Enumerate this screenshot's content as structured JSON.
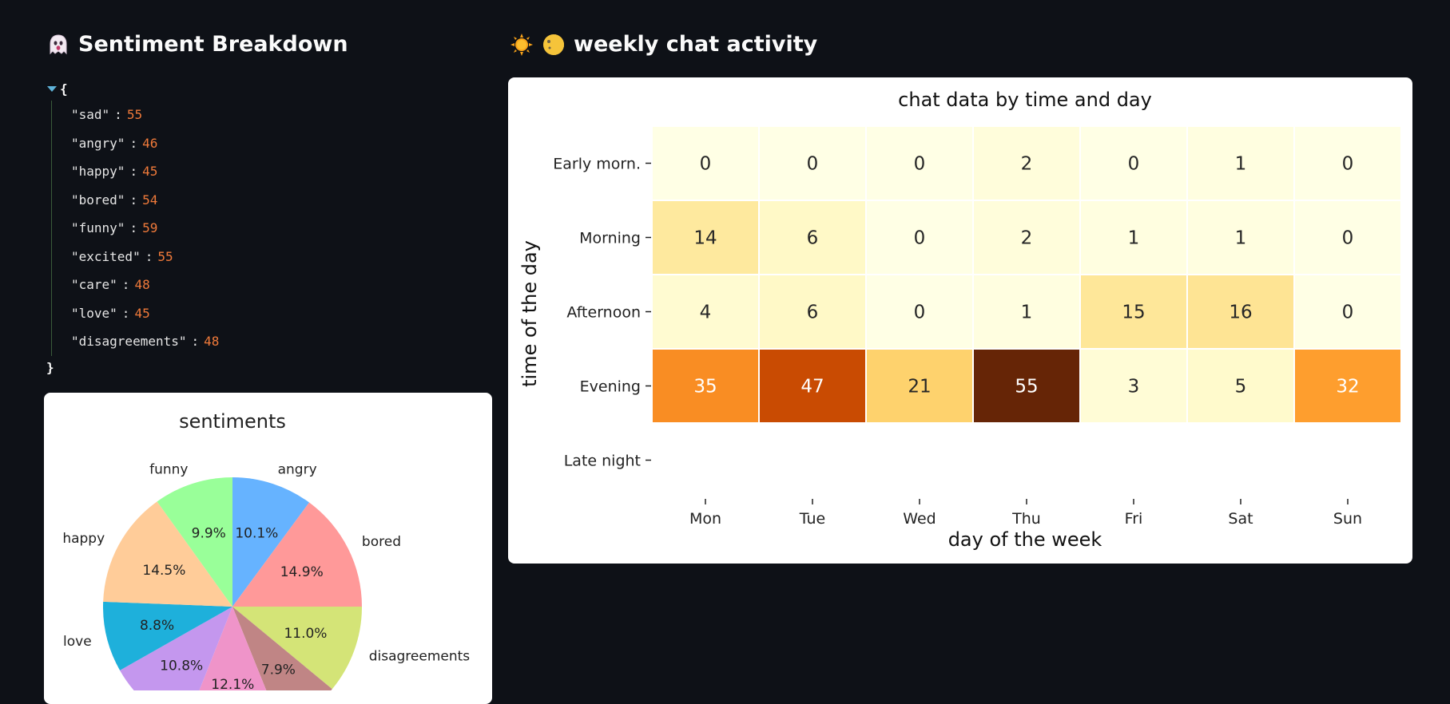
{
  "left_header": {
    "title": "Sentiment Breakdown",
    "icon": "ghost-icon"
  },
  "right_header": {
    "title": "weekly chat activity",
    "icons": [
      "sun-icon",
      "moon-icon"
    ]
  },
  "json_view": {
    "open_brace": "{",
    "close_brace": "}",
    "entries": [
      {
        "key": "\"sad\"",
        "value": "55"
      },
      {
        "key": "\"angry\"",
        "value": "46"
      },
      {
        "key": "\"happy\"",
        "value": "45"
      },
      {
        "key": "\"bored\"",
        "value": "54"
      },
      {
        "key": "\"funny\"",
        "value": "59"
      },
      {
        "key": "\"excited\"",
        "value": "55"
      },
      {
        "key": "\"care\"",
        "value": "48"
      },
      {
        "key": "\"love\"",
        "value": "45"
      },
      {
        "key": "\"disagreements\"",
        "value": "48"
      }
    ]
  },
  "chart_data": [
    {
      "type": "pie",
      "title": "sentiments",
      "slices": [
        {
          "label": "angry",
          "pct": 10.1,
          "color": "#66b3ff"
        },
        {
          "label": "bored",
          "pct": 14.9,
          "color": "#ff9999"
        },
        {
          "label": "disagreements",
          "pct": 11.0,
          "color": "#d4e477"
        },
        {
          "label": "",
          "pct": 7.9,
          "color": "#c08585"
        },
        {
          "label": "",
          "pct": 12.1,
          "color": "#ef94c9"
        },
        {
          "label": "",
          "pct": 10.8,
          "color": "#c497ee"
        },
        {
          "label": "love",
          "pct": 8.8,
          "color": "#1eb0db"
        },
        {
          "label": "happy",
          "pct": 14.5,
          "color": "#ffcc99"
        },
        {
          "label": "funny",
          "pct": 9.9,
          "color": "#99ff99"
        }
      ]
    },
    {
      "type": "heatmap",
      "title": "chat data by time and day",
      "xlabel": "day of the week",
      "ylabel": "time of the day",
      "x": [
        "Mon",
        "Tue",
        "Wed",
        "Thu",
        "Fri",
        "Sat",
        "Sun"
      ],
      "y": [
        "Early morn.",
        "Morning",
        "Afternoon",
        "Evening",
        "Late night"
      ],
      "values": [
        [
          0,
          0,
          0,
          2,
          0,
          1,
          0
        ],
        [
          14,
          6,
          0,
          2,
          1,
          1,
          0
        ],
        [
          4,
          6,
          0,
          1,
          15,
          16,
          0
        ],
        [
          35,
          47,
          21,
          55,
          3,
          5,
          32
        ],
        [
          null,
          null,
          null,
          null,
          null,
          null,
          null
        ]
      ],
      "colormap": "YlOrBr"
    }
  ]
}
